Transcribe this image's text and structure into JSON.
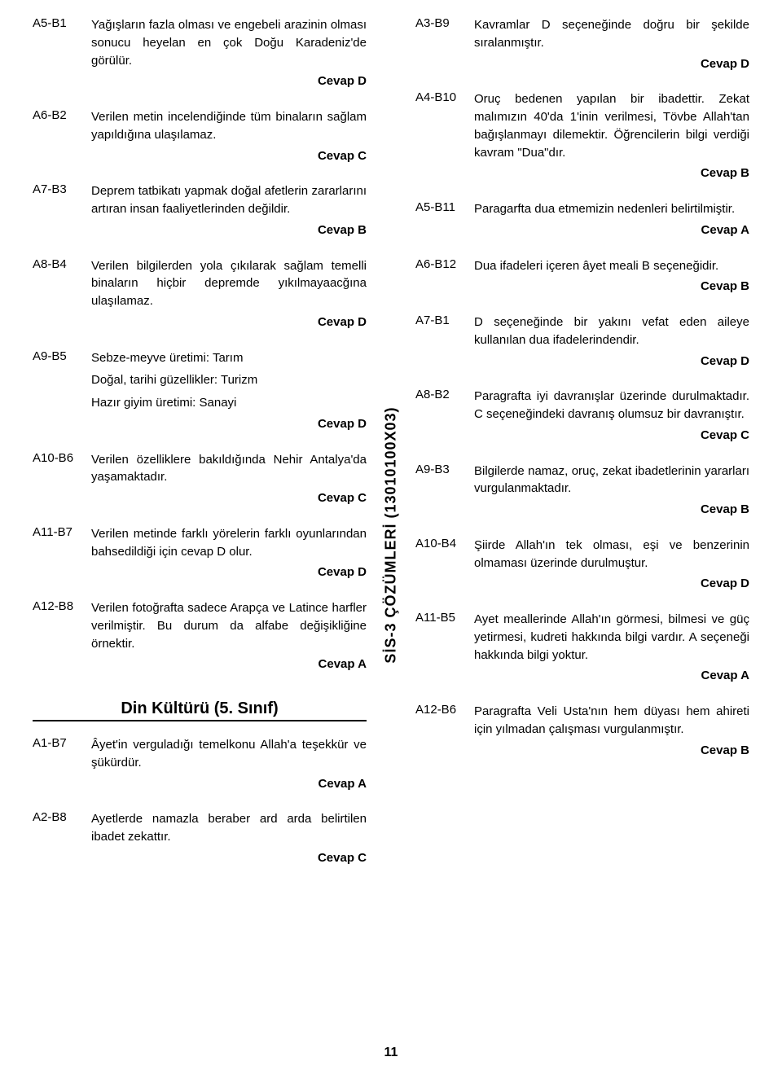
{
  "vertical_label": "SİS-3 ÇÖZÜMLERİ (13010100X03)",
  "page_number": "11",
  "section_heading": "Din Kültürü (5. Sınıf)",
  "left": [
    {
      "label": "A5-B1",
      "text": "Yağışların fazla olması ve engebeli arazinin olması sonucu heyelan en çok Doğu Karadeniz'de görülür.",
      "answer": "Cevap D"
    },
    {
      "label": "A6-B2",
      "text": "Verilen metin incelendiğinde tüm binaların sağlam yapıldığına ulaşılamaz.",
      "answer": "Cevap C"
    },
    {
      "label": "A7-B3",
      "text": "Deprem tatbikatı yapmak doğal afetlerin zararlarını artıran insan faaliyetlerinden değildir.",
      "answer": "Cevap B"
    },
    {
      "label": "A8-B4",
      "text": "Verilen bilgilerden yola çıkılarak sağlam temelli binaların hiçbir depremde yıkılmayaacğına ulaşılamaz.",
      "answer": "Cevap D"
    },
    {
      "label": "A9-B5",
      "lines": [
        "Sebze-meyve üretimi: Tarım",
        "Doğal, tarihi güzellikler: Turizm",
        "Hazır giyim üretimi: Sanayi"
      ],
      "answer": "Cevap D"
    },
    {
      "label": "A10-B6",
      "text": "Verilen özelliklere bakıldığında Nehir Antalya'da yaşamaktadır.",
      "answer": "Cevap C"
    },
    {
      "label": "A11-B7",
      "text": "Verilen metinde farklı yörelerin farklı oyunlarından bahsedildiği için cevap D olur.",
      "answer": "Cevap D"
    },
    {
      "label": "A12-B8",
      "text": "Verilen fotoğrafta sadece Arapça ve Latince harfler verilmiştir. Bu durum da alfabe değişikliğine örnektir.",
      "answer": "Cevap A"
    }
  ],
  "left2": [
    {
      "label": "A1-B7",
      "text": "Âyet'in verguladığı temelkonu Allah'a teşekkür ve şükürdür.",
      "answer": "Cevap A"
    },
    {
      "label": "A2-B8",
      "text": "Ayetlerde namazla beraber ard arda belirtilen ibadet zekattır.",
      "answer": "Cevap C"
    }
  ],
  "right": [
    {
      "label": "A3-B9",
      "text": "Kavramlar D seçeneğinde doğru bir şekilde sıralanmıştır.",
      "answer": "Cevap D"
    },
    {
      "label": "A4-B10",
      "text": "Oruç bedenen yapılan bir ibadettir. Zekat malımızın 40'da 1'inin verilmesi, Tövbe Allah'tan bağışlanmayı dilemektir. Öğrencilerin bilgi verdiği kavram \"Dua\"dır.",
      "answer": "Cevap B"
    },
    {
      "label": "A5-B11",
      "text": "Paragarfta dua etmemizin nedenleri belirtilmiştir.",
      "answer": "Cevap A"
    },
    {
      "label": "A6-B12",
      "text": "Dua ifadeleri içeren âyet meali B seçeneğidir.",
      "answer": "Cevap B"
    },
    {
      "label": "A7-B1",
      "text": "D seçeneğinde bir yakını vefat eden aileye kullanılan dua ifadelerindendir.",
      "answer": "Cevap D"
    },
    {
      "label": "A8-B2",
      "text": "Paragrafta iyi davranışlar üzerinde durulmaktadır. C seçeneğindeki davranış olumsuz bir davranıştır.",
      "answer": "Cevap C"
    },
    {
      "label": "A9-B3",
      "text": "Bilgilerde namaz, oruç, zekat ibadetlerinin yararları vurgulanmaktadır.",
      "answer": "Cevap B"
    },
    {
      "label": "A10-B4",
      "text": "Şiirde Allah'ın tek olması, eşi ve benzerinin olmaması üzerinde durulmuştur.",
      "answer": "Cevap D"
    },
    {
      "label": "A11-B5",
      "text": "Ayet meallerinde Allah'ın görmesi, bilmesi ve güç yetirmesi, kudreti hakkında bilgi vardır. A seçeneği hakkında bilgi yoktur.",
      "answer": "Cevap A"
    },
    {
      "label": "A12-B6",
      "text": "Paragrafta Veli Usta'nın hem düyası hem ahireti için yılmadan çalışması vurgulanmıştır.",
      "answer": "Cevap B"
    }
  ]
}
